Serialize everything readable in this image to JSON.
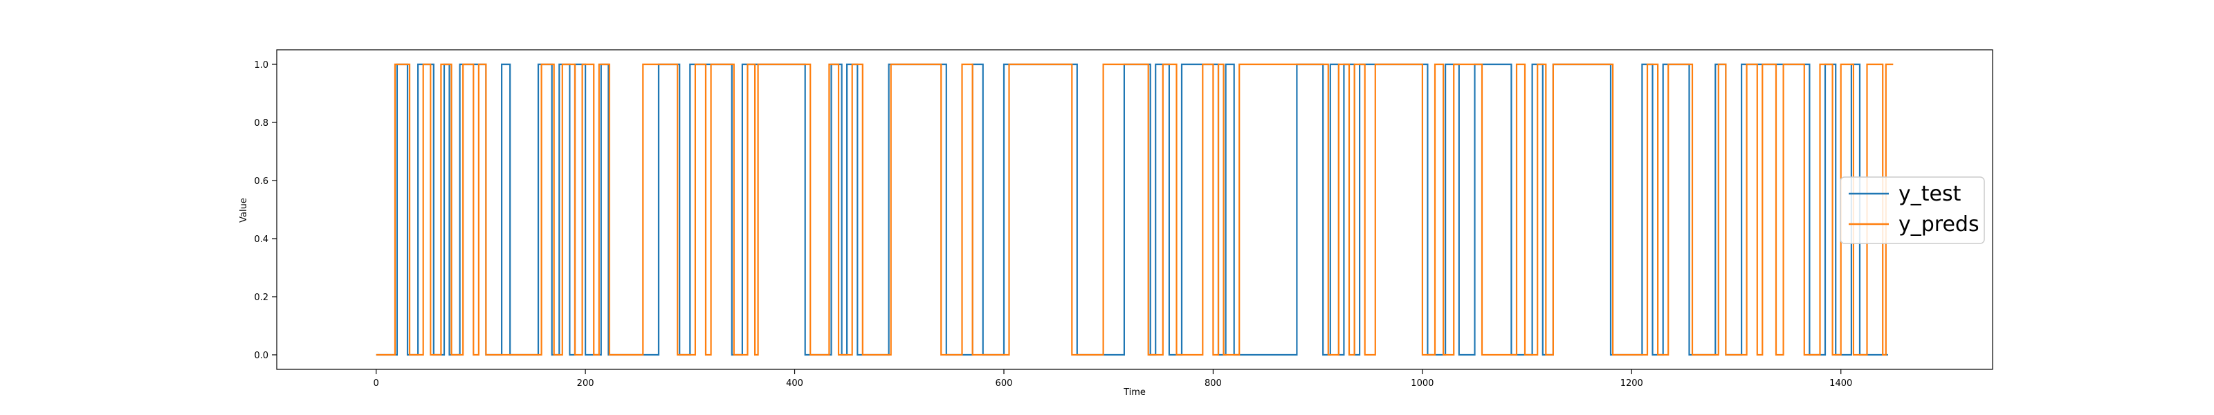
{
  "chart_data": {
    "type": "line",
    "title": "",
    "xlabel": "Time",
    "ylabel": "Value",
    "xlim": [
      -95,
      1545
    ],
    "ylim": [
      -0.05,
      1.05
    ],
    "xticks": [
      0,
      200,
      400,
      600,
      800,
      1000,
      1200,
      1400
    ],
    "yticks": [
      0.0,
      0.2,
      0.4,
      0.6,
      0.8,
      1.0
    ],
    "ytick_labels": [
      "0.0",
      "0.2",
      "0.4",
      "0.6",
      "0.8",
      "1.0"
    ],
    "grid": false,
    "legend_position": "center-right",
    "series": [
      {
        "name": "y_test",
        "color": "#1f77b4",
        "segments": [
          [
            0,
            0
          ],
          [
            20,
            1
          ],
          [
            30,
            0
          ],
          [
            40,
            1
          ],
          [
            55,
            0
          ],
          [
            65,
            1
          ],
          [
            70,
            0
          ],
          [
            80,
            1
          ],
          [
            100,
            1
          ],
          [
            105,
            0
          ],
          [
            120,
            1
          ],
          [
            128,
            0
          ],
          [
            155,
            1
          ],
          [
            168,
            0
          ],
          [
            175,
            1
          ],
          [
            185,
            0
          ],
          [
            190,
            1
          ],
          [
            200,
            0
          ],
          [
            215,
            1
          ],
          [
            222,
            0
          ],
          [
            270,
            1
          ],
          [
            290,
            0
          ],
          [
            300,
            1
          ],
          [
            340,
            0
          ],
          [
            350,
            1
          ],
          [
            410,
            0
          ],
          [
            435,
            1
          ],
          [
            445,
            0
          ],
          [
            450,
            1
          ],
          [
            460,
            0
          ],
          [
            490,
            1
          ],
          [
            545,
            0
          ],
          [
            570,
            1
          ],
          [
            580,
            0
          ],
          [
            600,
            1
          ],
          [
            670,
            0
          ],
          [
            715,
            1
          ],
          [
            740,
            0
          ],
          [
            745,
            1
          ],
          [
            758,
            0
          ],
          [
            770,
            1
          ],
          [
            805,
            0
          ],
          [
            812,
            1
          ],
          [
            820,
            0
          ],
          [
            880,
            1
          ],
          [
            905,
            0
          ],
          [
            912,
            1
          ],
          [
            920,
            0
          ],
          [
            925,
            1
          ],
          [
            935,
            0
          ],
          [
            940,
            1
          ],
          [
            1005,
            0
          ],
          [
            1022,
            1
          ],
          [
            1035,
            0
          ],
          [
            1050,
            1
          ],
          [
            1085,
            0
          ],
          [
            1105,
            1
          ],
          [
            1115,
            0
          ],
          [
            1125,
            1
          ],
          [
            1180,
            0
          ],
          [
            1210,
            1
          ],
          [
            1220,
            0
          ],
          [
            1230,
            1
          ],
          [
            1255,
            0
          ],
          [
            1280,
            1
          ],
          [
            1290,
            0
          ],
          [
            1305,
            1
          ],
          [
            1370,
            0
          ],
          [
            1385,
            1
          ],
          [
            1395,
            0
          ],
          [
            1410,
            1
          ],
          [
            1418,
            0
          ],
          [
            1445,
            0
          ]
        ]
      },
      {
        "name": "y_preds",
        "color": "#ff7f0e",
        "segments": [
          [
            0,
            0
          ],
          [
            18,
            1
          ],
          [
            32,
            0
          ],
          [
            45,
            1
          ],
          [
            52,
            0
          ],
          [
            62,
            1
          ],
          [
            72,
            0
          ],
          [
            83,
            1
          ],
          [
            93,
            0
          ],
          [
            98,
            1
          ],
          [
            105,
            0
          ],
          [
            158,
            1
          ],
          [
            170,
            0
          ],
          [
            178,
            1
          ],
          [
            190,
            0
          ],
          [
            197,
            1
          ],
          [
            208,
            0
          ],
          [
            213,
            1
          ],
          [
            223,
            0
          ],
          [
            255,
            1
          ],
          [
            288,
            0
          ],
          [
            305,
            1
          ],
          [
            315,
            0
          ],
          [
            320,
            1
          ],
          [
            342,
            0
          ],
          [
            355,
            1
          ],
          [
            362,
            0
          ],
          [
            365,
            1
          ],
          [
            415,
            0
          ],
          [
            433,
            1
          ],
          [
            442,
            0
          ],
          [
            455,
            1
          ],
          [
            465,
            0
          ],
          [
            492,
            1
          ],
          [
            540,
            0
          ],
          [
            560,
            1
          ],
          [
            570,
            0
          ],
          [
            605,
            1
          ],
          [
            665,
            0
          ],
          [
            695,
            1
          ],
          [
            738,
            0
          ],
          [
            752,
            1
          ],
          [
            765,
            0
          ],
          [
            790,
            1
          ],
          [
            800,
            0
          ],
          [
            805,
            1
          ],
          [
            810,
            0
          ],
          [
            825,
            1
          ],
          [
            910,
            0
          ],
          [
            920,
            1
          ],
          [
            930,
            0
          ],
          [
            935,
            1
          ],
          [
            945,
            0
          ],
          [
            955,
            1
          ],
          [
            1000,
            0
          ],
          [
            1012,
            1
          ],
          [
            1020,
            0
          ],
          [
            1030,
            1
          ],
          [
            1057,
            0
          ],
          [
            1090,
            1
          ],
          [
            1098,
            0
          ],
          [
            1110,
            1
          ],
          [
            1118,
            0
          ],
          [
            1125,
            1
          ],
          [
            1182,
            0
          ],
          [
            1215,
            1
          ],
          [
            1225,
            0
          ],
          [
            1235,
            1
          ],
          [
            1258,
            0
          ],
          [
            1283,
            1
          ],
          [
            1290,
            0
          ],
          [
            1310,
            1
          ],
          [
            1320,
            0
          ],
          [
            1325,
            1
          ],
          [
            1338,
            0
          ],
          [
            1345,
            1
          ],
          [
            1365,
            0
          ],
          [
            1380,
            1
          ],
          [
            1392,
            0
          ],
          [
            1400,
            1
          ],
          [
            1412,
            0
          ],
          [
            1425,
            1
          ],
          [
            1440,
            0
          ],
          [
            1443,
            1
          ],
          [
            1450,
            1
          ]
        ]
      }
    ]
  }
}
